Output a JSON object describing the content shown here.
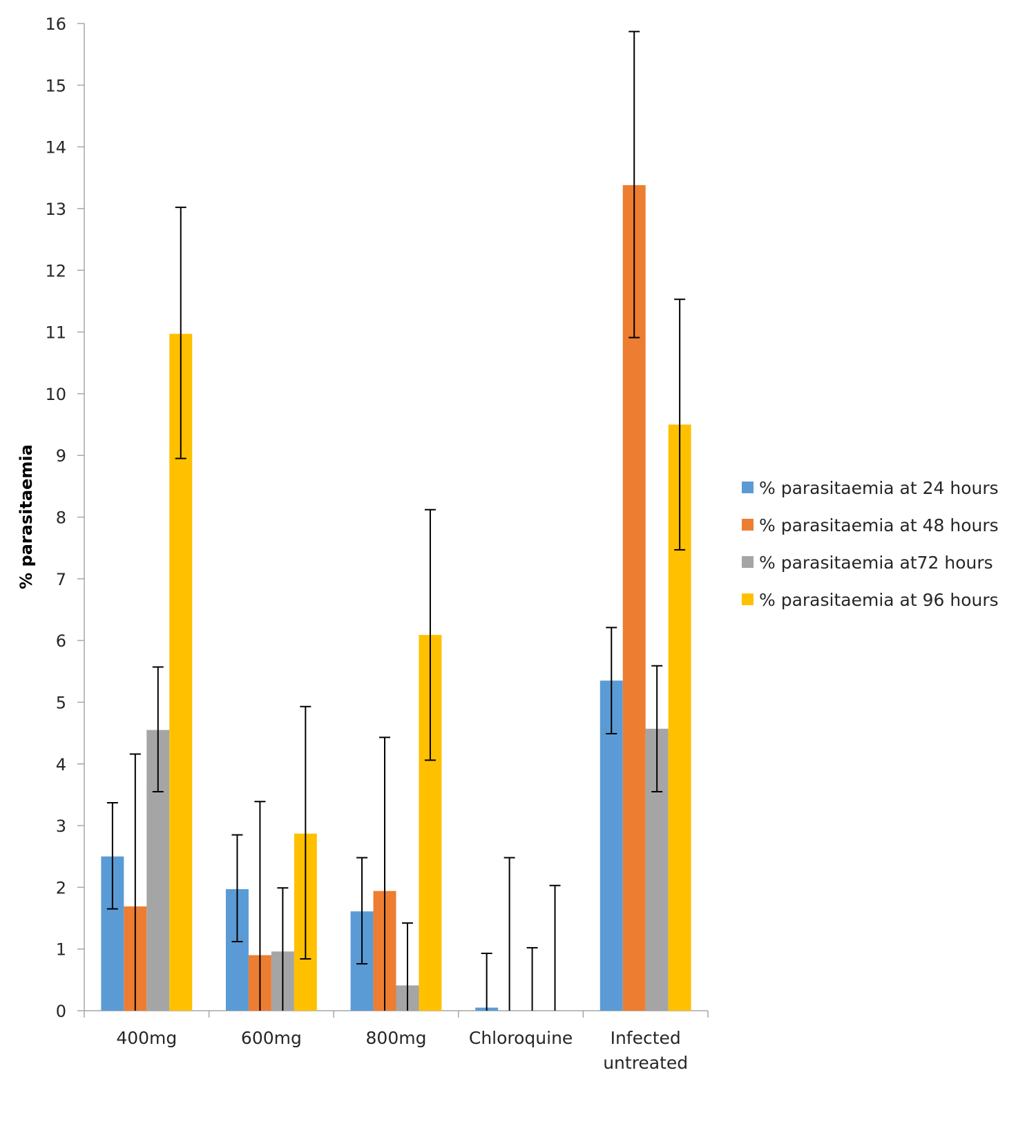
{
  "chart_data": {
    "type": "bar",
    "title": "",
    "xlabel": "",
    "ylabel": "% parasitaemia",
    "ylim": [
      0,
      16
    ],
    "yticks": [
      0,
      1,
      2,
      3,
      4,
      5,
      6,
      7,
      8,
      9,
      10,
      11,
      12,
      13,
      14,
      15,
      16
    ],
    "grid": false,
    "legend_position": "right",
    "categories": [
      "400mg",
      "600mg",
      "800mg",
      "Chloroquine",
      "Infected untreated"
    ],
    "series": [
      {
        "name": "% parasitaemia at 24 hours",
        "color": "#5B9BD5",
        "values": [
          2.5,
          1.97,
          1.61,
          0.05,
          5.35
        ],
        "err_low": [
          1.65,
          1.12,
          0.76,
          0,
          4.49
        ],
        "err_high": [
          3.37,
          2.85,
          2.48,
          0.93,
          6.21
        ]
      },
      {
        "name": "% parasitaemia at 48 hours",
        "color": "#ED7D31",
        "values": [
          1.69,
          0.9,
          1.94,
          0,
          13.38
        ],
        "err_low": [
          0,
          0,
          0,
          0,
          10.91
        ],
        "err_high": [
          4.16,
          3.39,
          4.43,
          2.48,
          15.87
        ]
      },
      {
        "name": "% parasitaemia at72 hours",
        "color": "#A5A5A5",
        "values": [
          4.55,
          0.96,
          0.41,
          0,
          4.57
        ],
        "err_low": [
          3.55,
          0,
          0,
          0,
          3.55
        ],
        "err_high": [
          5.57,
          1.99,
          1.42,
          1.02,
          5.59
        ]
      },
      {
        "name": "% parasitaemia at 96 hours",
        "color": "#FFC000",
        "values": [
          10.97,
          2.87,
          6.09,
          0,
          9.5
        ],
        "err_low": [
          8.95,
          0.84,
          4.06,
          0,
          7.47
        ],
        "err_high": [
          13.02,
          4.93,
          8.12,
          2.03,
          11.53
        ]
      }
    ]
  }
}
